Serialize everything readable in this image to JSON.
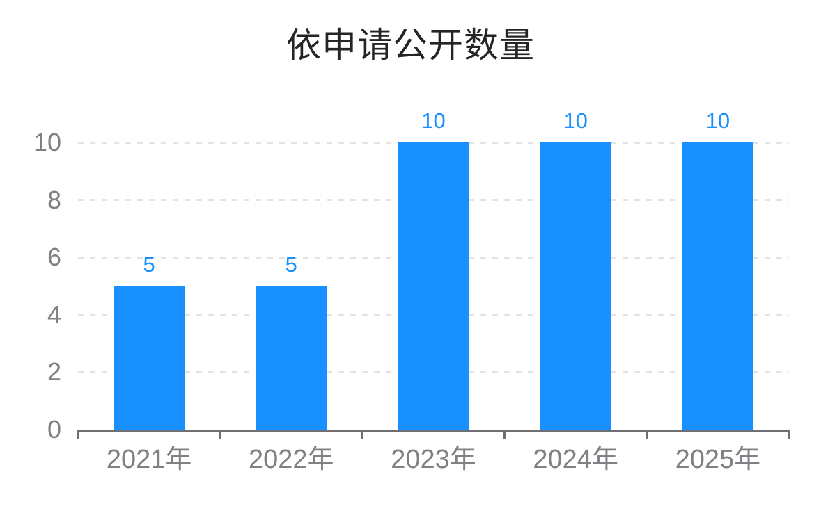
{
  "chart_data": {
    "type": "bar",
    "title": "依申请公开数量",
    "categories": [
      "2021年",
      "2022年",
      "2023年",
      "2024年",
      "2025年"
    ],
    "values": [
      5,
      5,
      10,
      10,
      10
    ],
    "data_labels": [
      "5",
      "5",
      "10",
      "10",
      "10"
    ],
    "xlabel": "",
    "ylabel": "",
    "ylim": [
      0,
      10
    ],
    "yticks": [
      0,
      2,
      4,
      6,
      8,
      10
    ],
    "grid": "horizontal-dashed",
    "legend": "none",
    "colors": {
      "bar": "#1890ff",
      "data_label": "#1890ff",
      "gridline": "#e3e3e5",
      "axis_line": "#6e6e73",
      "tick_label": "#808085",
      "title": "#252527",
      "background": "#ffffff"
    }
  }
}
